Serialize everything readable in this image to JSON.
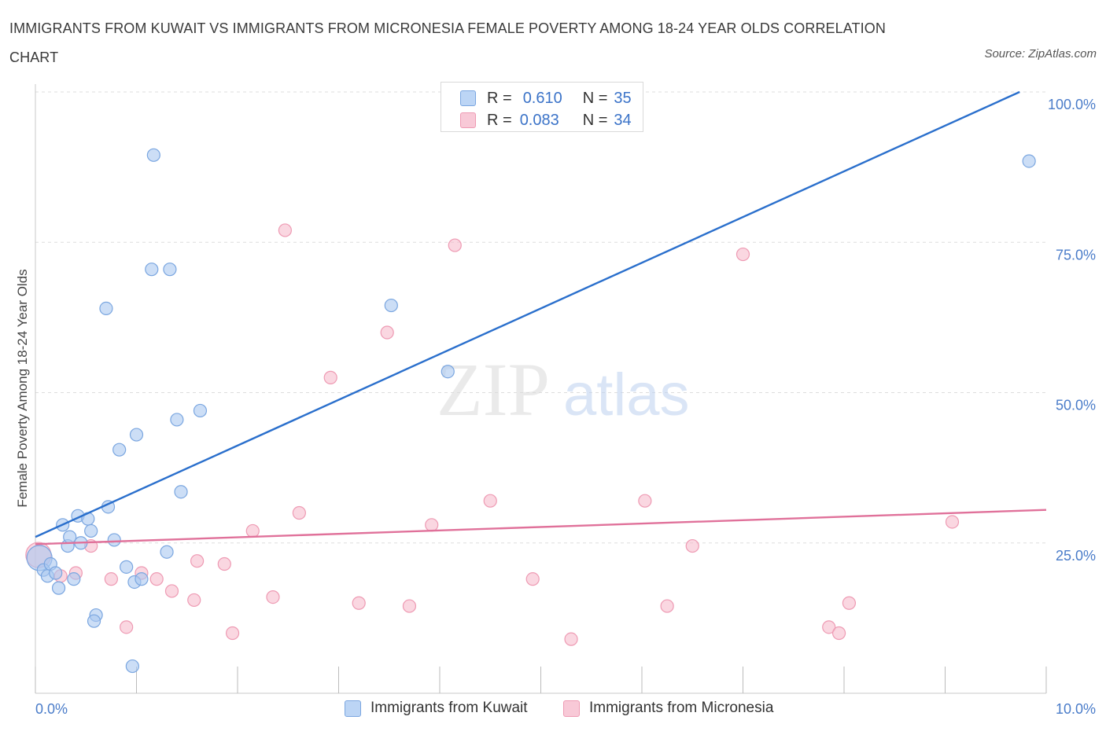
{
  "title": "IMMIGRANTS FROM KUWAIT VS IMMIGRANTS FROM MICRONESIA FEMALE POVERTY AMONG 18-24 YEAR OLDS CORRELATION CHART",
  "source": "Source: ZipAtlas.com",
  "watermark": {
    "zip": "ZIP",
    "atlas": "atlas"
  },
  "colors": {
    "kuwait_fill": "#aac8f0",
    "kuwait_stroke": "#7aa6e0",
    "kuwait_line": "#2a6fcc",
    "micronesia_fill": "#f6bccd",
    "micronesia_stroke": "#ee9ab3",
    "micronesia_line": "#e0719a",
    "tick_label": "#4a7cc9",
    "grid": "#dddddd"
  },
  "legend": {
    "rows": [
      {
        "r_label": "R =",
        "r_value": "0.610",
        "n_label": "N =",
        "n_value": "35"
      },
      {
        "r_label": "R =",
        "r_value": "0.083",
        "n_label": "N =",
        "n_value": "34"
      }
    ]
  },
  "chart_data": {
    "type": "scatter",
    "title": "IMMIGRANTS FROM KUWAIT VS IMMIGRANTS FROM MICRONESIA FEMALE POVERTY AMONG 18-24 YEAR OLDS CORRELATION CHART",
    "xlabel": "",
    "ylabel": "Female Poverty Among 18-24 Year Olds",
    "xlim": [
      0,
      10
    ],
    "ylim": [
      0,
      100
    ],
    "x_tick_labels": [
      "0.0%",
      "10.0%"
    ],
    "y_tick_labels": [
      "25.0%",
      "50.0%",
      "75.0%",
      "100.0%"
    ],
    "y_ticks": [
      25,
      50,
      75,
      100
    ],
    "grid": true,
    "legend_position": "top-center",
    "series": [
      {
        "name": "Immigrants from Kuwait",
        "color": "#aac8f0",
        "trend": {
          "x": [
            0,
            10
          ],
          "y": [
            26,
            102
          ]
        },
        "points": [
          {
            "x": 0.04,
            "y": 22.5,
            "size": "large"
          },
          {
            "x": 0.08,
            "y": 20.5
          },
          {
            "x": 0.12,
            "y": 19.5
          },
          {
            "x": 0.15,
            "y": 21.5
          },
          {
            "x": 0.2,
            "y": 20.0
          },
          {
            "x": 0.23,
            "y": 17.5
          },
          {
            "x": 0.27,
            "y": 28.0
          },
          {
            "x": 0.32,
            "y": 24.5
          },
          {
            "x": 0.34,
            "y": 26.0
          },
          {
            "x": 0.38,
            "y": 19.0
          },
          {
            "x": 0.42,
            "y": 29.5
          },
          {
            "x": 0.45,
            "y": 25.0
          },
          {
            "x": 0.52,
            "y": 29.0
          },
          {
            "x": 0.55,
            "y": 27.0
          },
          {
            "x": 0.6,
            "y": 13.0
          },
          {
            "x": 0.58,
            "y": 12.0
          },
          {
            "x": 0.7,
            "y": 64.0
          },
          {
            "x": 0.72,
            "y": 31.0
          },
          {
            "x": 0.78,
            "y": 25.5
          },
          {
            "x": 0.83,
            "y": 40.5
          },
          {
            "x": 0.9,
            "y": 21.0
          },
          {
            "x": 0.96,
            "y": 4.5
          },
          {
            "x": 0.98,
            "y": 18.5
          },
          {
            "x": 1.0,
            "y": 43.0
          },
          {
            "x": 1.05,
            "y": 19.0
          },
          {
            "x": 1.15,
            "y": 70.5
          },
          {
            "x": 1.17,
            "y": 89.5
          },
          {
            "x": 1.3,
            "y": 23.5
          },
          {
            "x": 1.33,
            "y": 70.5
          },
          {
            "x": 1.4,
            "y": 45.5
          },
          {
            "x": 1.44,
            "y": 33.5
          },
          {
            "x": 1.63,
            "y": 47.0
          },
          {
            "x": 3.52,
            "y": 64.5
          },
          {
            "x": 4.08,
            "y": 53.5
          },
          {
            "x": 9.83,
            "y": 88.5
          }
        ]
      },
      {
        "name": "Immigrants from Micronesia",
        "color": "#f6bccd",
        "trend": {
          "x": [
            0,
            10
          ],
          "y": [
            24.8,
            30.5
          ]
        },
        "points": [
          {
            "x": 0.03,
            "y": 23.0,
            "size": "large"
          },
          {
            "x": 0.25,
            "y": 19.5
          },
          {
            "x": 0.4,
            "y": 20.0
          },
          {
            "x": 0.55,
            "y": 24.5
          },
          {
            "x": 0.75,
            "y": 19.0
          },
          {
            "x": 0.9,
            "y": 11.0
          },
          {
            "x": 1.05,
            "y": 20.0
          },
          {
            "x": 1.2,
            "y": 19.0
          },
          {
            "x": 1.35,
            "y": 17.0
          },
          {
            "x": 1.57,
            "y": 15.5
          },
          {
            "x": 1.6,
            "y": 22.0
          },
          {
            "x": 1.87,
            "y": 21.5
          },
          {
            "x": 1.95,
            "y": 10.0
          },
          {
            "x": 2.15,
            "y": 27.0
          },
          {
            "x": 2.35,
            "y": 16.0
          },
          {
            "x": 2.47,
            "y": 77.0
          },
          {
            "x": 2.61,
            "y": 30.0
          },
          {
            "x": 2.92,
            "y": 52.5
          },
          {
            "x": 3.2,
            "y": 15.0
          },
          {
            "x": 3.48,
            "y": 60.0
          },
          {
            "x": 3.7,
            "y": 14.5
          },
          {
            "x": 3.92,
            "y": 28.0
          },
          {
            "x": 4.15,
            "y": 74.5
          },
          {
            "x": 4.5,
            "y": 32.0
          },
          {
            "x": 4.92,
            "y": 19.0
          },
          {
            "x": 5.3,
            "y": 9.0
          },
          {
            "x": 6.03,
            "y": 32.0
          },
          {
            "x": 6.25,
            "y": 14.5
          },
          {
            "x": 6.5,
            "y": 24.5
          },
          {
            "x": 7.0,
            "y": 73.0
          },
          {
            "x": 7.85,
            "y": 11.0
          },
          {
            "x": 7.95,
            "y": 10.0
          },
          {
            "x": 8.05,
            "y": 15.0
          },
          {
            "x": 9.07,
            "y": 28.5
          }
        ]
      }
    ]
  }
}
